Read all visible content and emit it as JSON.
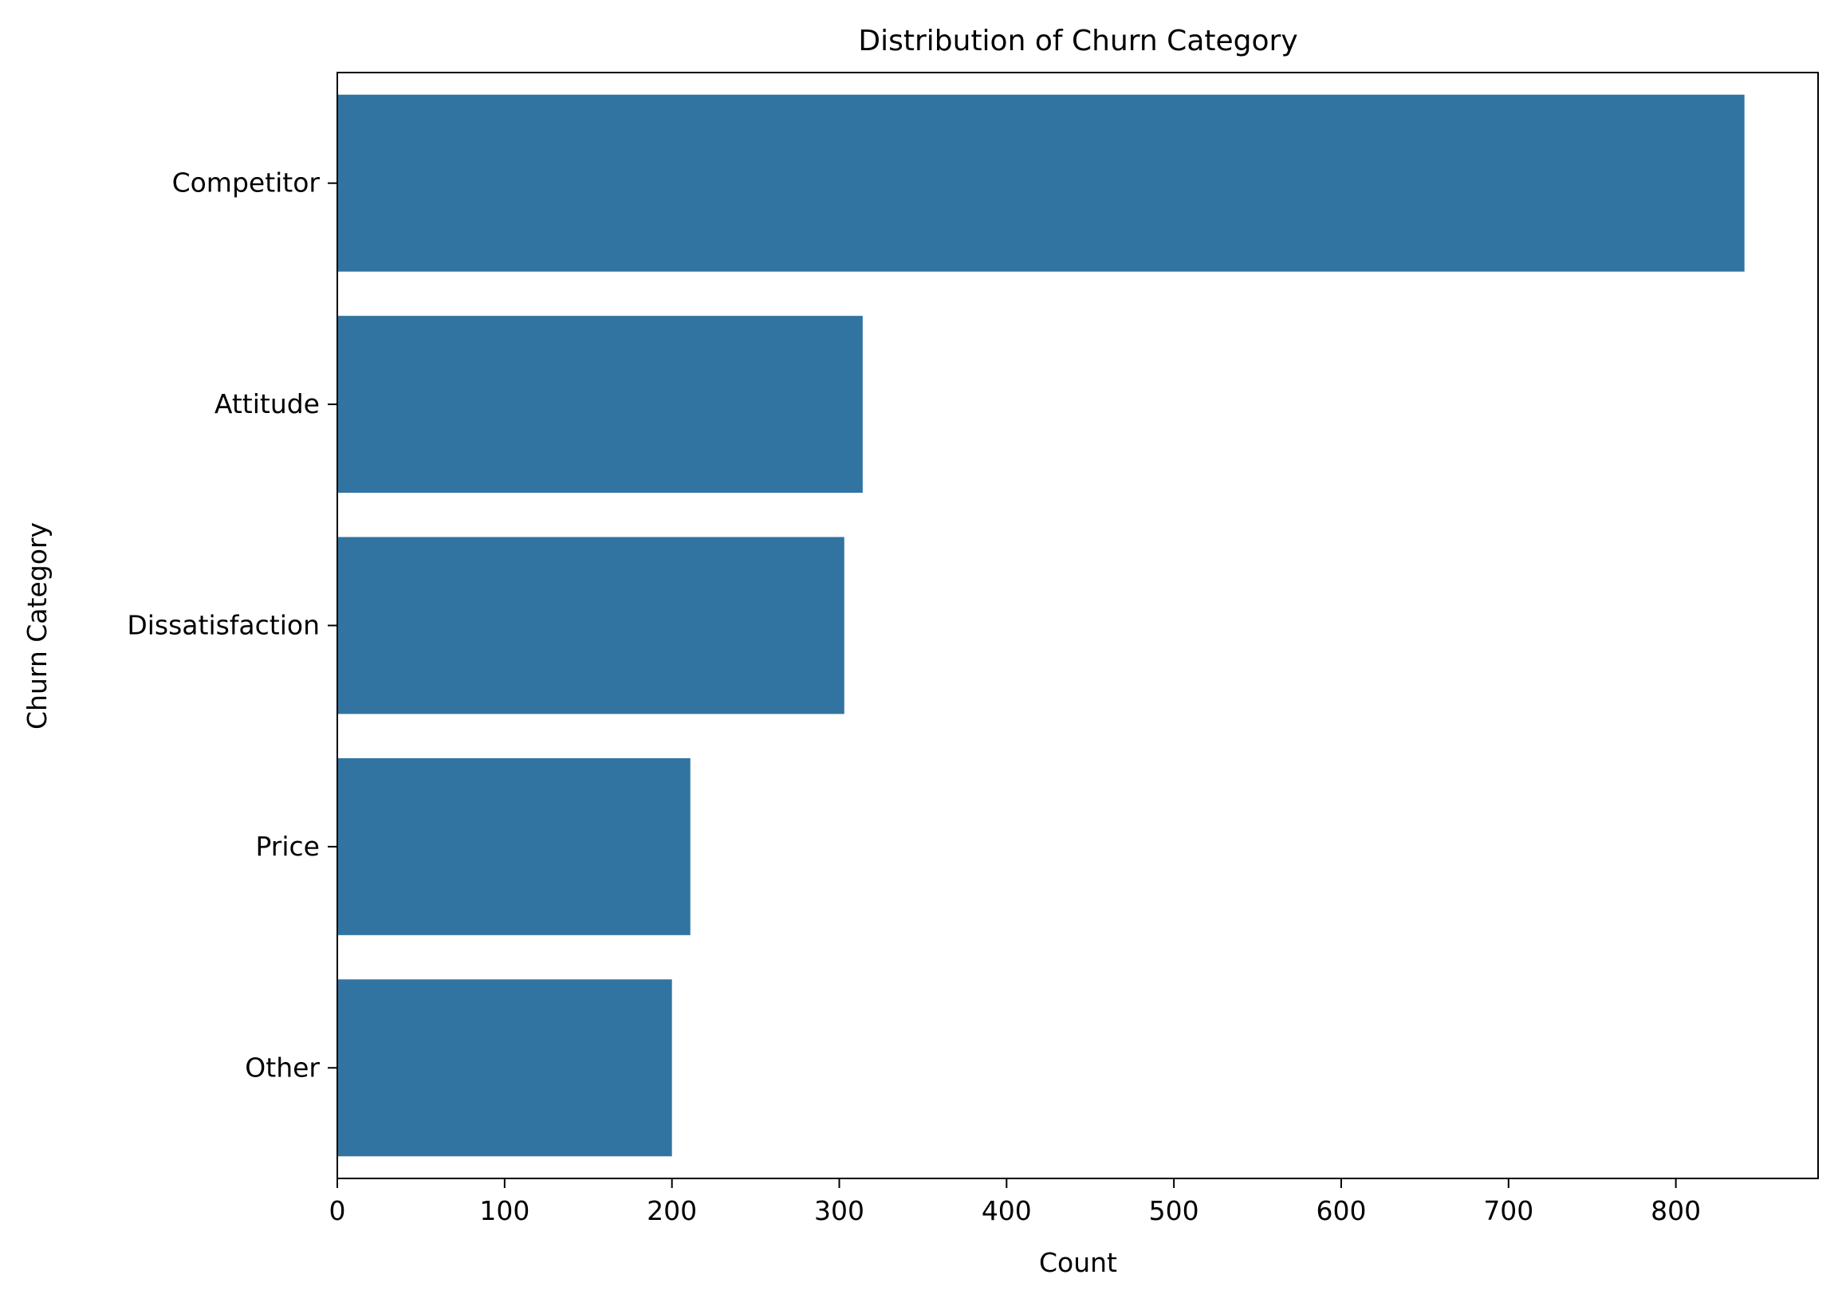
{
  "chart_data": {
    "type": "bar",
    "orientation": "horizontal",
    "title": "Distribution of Churn Category",
    "xlabel": "Count",
    "ylabel": "Churn Category",
    "categories": [
      "Competitor",
      "Attitude",
      "Dissatisfaction",
      "Price",
      "Other"
    ],
    "values": [
      841,
      314,
      303,
      211,
      200
    ],
    "xlim": [
      0,
      885
    ],
    "xticks": [
      0,
      100,
      200,
      300,
      400,
      500,
      600,
      700,
      800
    ],
    "bar_color": "#3274a1",
    "grid": false,
    "legend": "none"
  }
}
